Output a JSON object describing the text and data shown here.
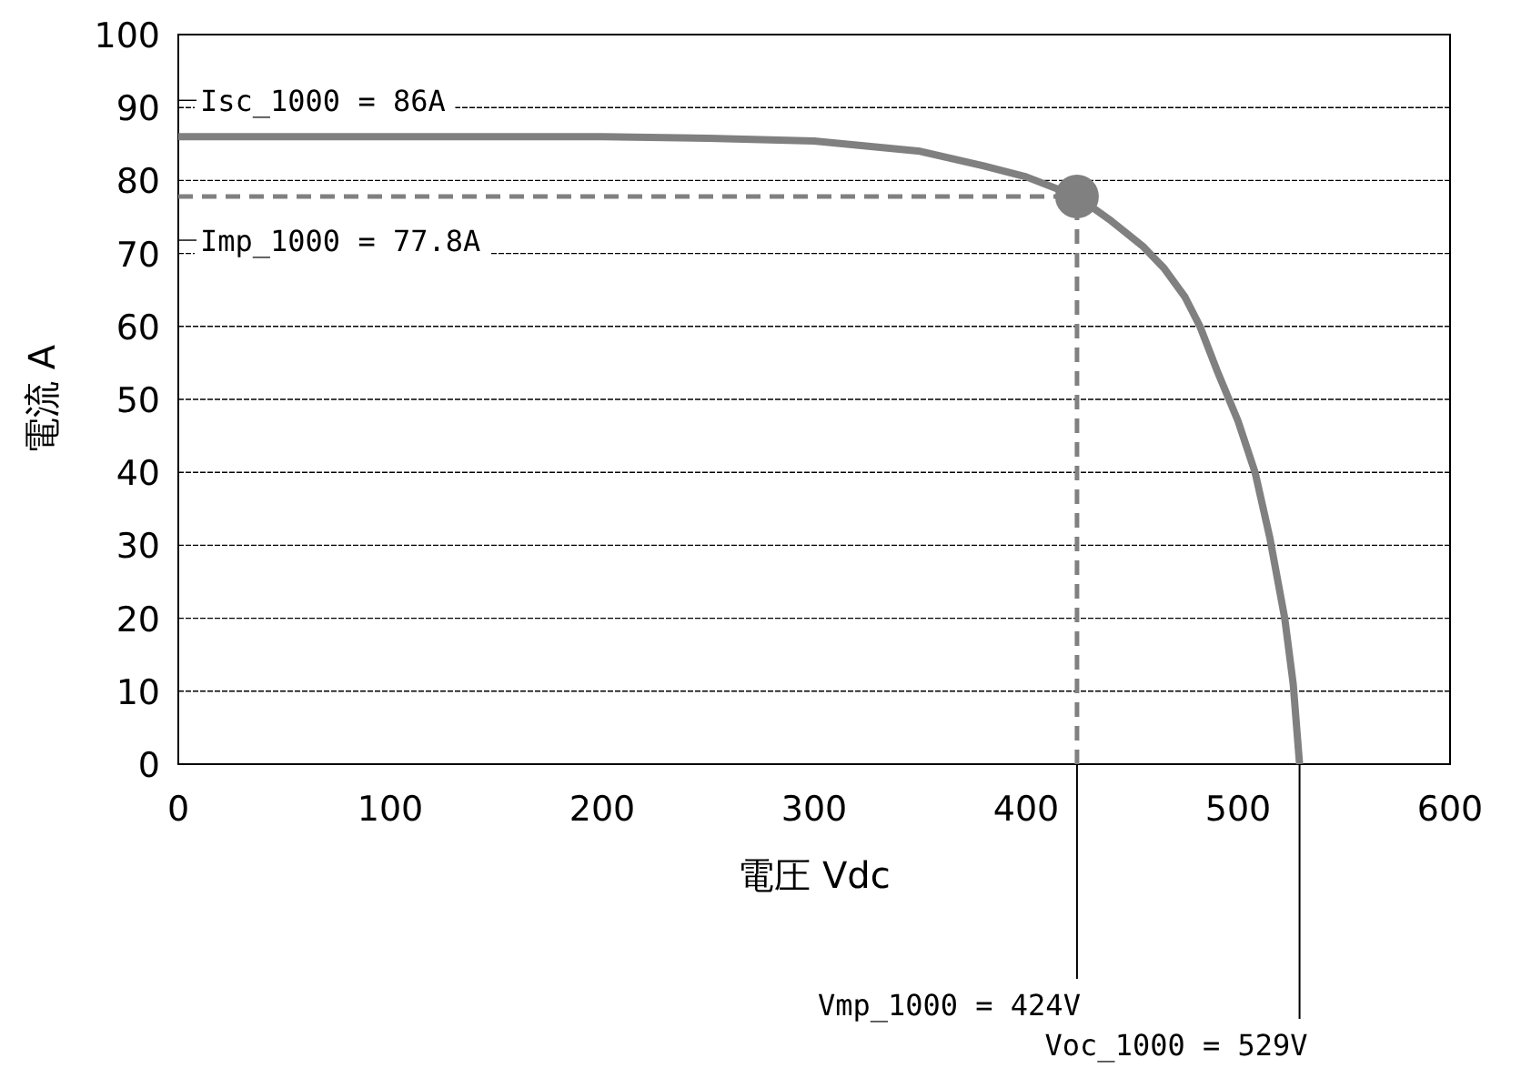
{
  "chart_data": {
    "type": "line",
    "xlabel": "電圧 Vdc",
    "ylabel": "電流 A",
    "xlim": [
      0,
      600
    ],
    "xticks": [
      0,
      100,
      200,
      300,
      400,
      500,
      600
    ],
    "ylim": [
      0,
      100
    ],
    "yticks": [
      0,
      10,
      20,
      30,
      40,
      50,
      60,
      70,
      80,
      90,
      100
    ],
    "grid": "y",
    "series": [
      {
        "type": "line",
        "color": "#808080",
        "x": [
          0,
          100,
          200,
          250,
          300,
          350,
          380,
          400,
          424,
          440,
          455,
          465,
          475,
          482,
          490,
          500,
          508,
          515,
          522,
          526,
          529
        ],
        "values": [
          86,
          86,
          86,
          85.8,
          85.4,
          84,
          82,
          80.5,
          77.8,
          74.5,
          71,
          68,
          64,
          60,
          54,
          47,
          40,
          31,
          20,
          11,
          0
        ]
      },
      {
        "type": "scatter",
        "marker": "circle",
        "color": "#808080",
        "x": [
          424
        ],
        "values": [
          77.8
        ]
      }
    ],
    "ref_lines": [
      {
        "axis": "y",
        "value": 77.8,
        "color": "#808080",
        "line_style": "dashed"
      },
      {
        "axis": "x",
        "value": 424,
        "color": "#808080",
        "line_style": "dashed"
      }
    ],
    "annotations": [
      {
        "text": "Isc_1000 = 86A",
        "x": 0,
        "y": 86
      },
      {
        "text": "Imp_1000 = 77.8A",
        "x": 0,
        "y": 77.8
      },
      {
        "text": "Vmp_1000 = 424V",
        "x": 424,
        "y": 0
      },
      {
        "text": "Voc_1000 = 529V",
        "x": 529,
        "y": 0
      }
    ]
  }
}
